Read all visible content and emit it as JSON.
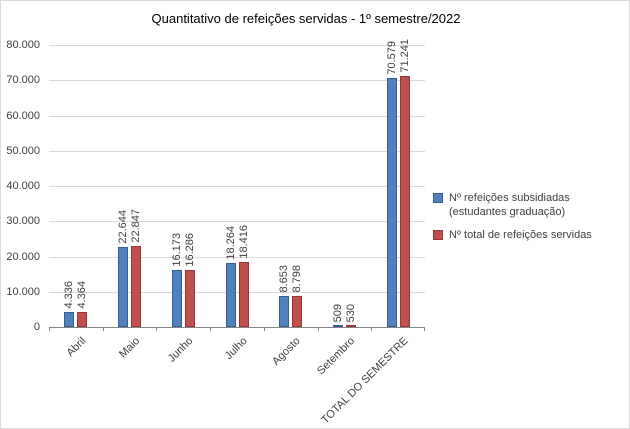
{
  "chart_data": {
    "type": "bar",
    "title": "Quantitativo de refeições servidas - 1º semestre/2022",
    "categories": [
      "Abril",
      "Maio",
      "Junho",
      "Julho",
      "Agosto",
      "Setembro",
      "TOTAL DO SEMESTRE"
    ],
    "series": [
      {
        "name": "Nº refeições subsidiadas (estudantes graduação)",
        "color": "#4F81BD",
        "border_color": "#385D8A",
        "values": [
          4336,
          22644,
          16173,
          18264,
          8653,
          509,
          70579
        ],
        "value_labels": [
          "4.336",
          "22.644",
          "16.173",
          "18.264",
          "8.653",
          "509",
          "70.579"
        ]
      },
      {
        "name": "Nº total de refeições servidas",
        "color": "#C0504D",
        "border_color": "#953735",
        "values": [
          4364,
          22847,
          16286,
          18416,
          8798,
          530,
          71241
        ],
        "value_labels": [
          "4.364",
          "22.847",
          "16.286",
          "18.416",
          "8.798",
          "530",
          "71.241"
        ]
      }
    ],
    "ylim": [
      0,
      80000
    ],
    "ytick_step": 10000,
    "ytick_labels": [
      "0",
      "10.000",
      "20.000",
      "30.000",
      "40.000",
      "50.000",
      "60.000",
      "70.000",
      "80.000"
    ],
    "grid": true,
    "legend_position": "right",
    "value_label_rotation": "vertical",
    "category_label_rotation": -45,
    "gridline_color": "#D9D9D9",
    "axis_line_color": "#868686",
    "label_text_color": "#404040"
  }
}
